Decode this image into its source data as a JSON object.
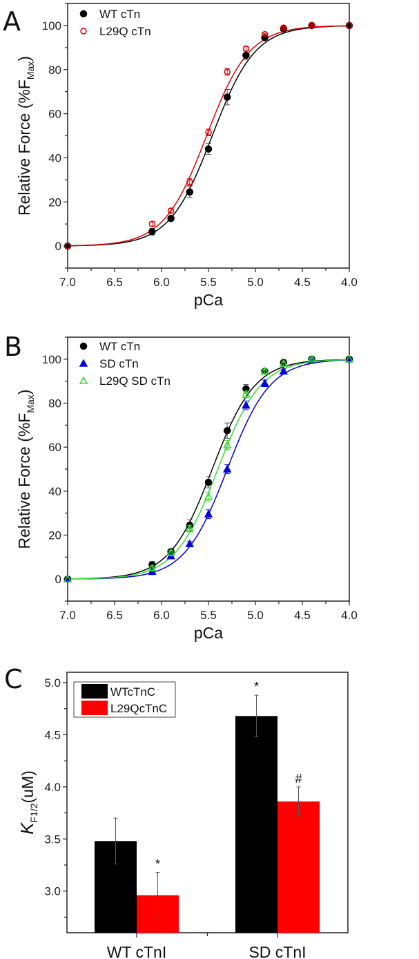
{
  "chart_data": [
    {
      "type": "scatter",
      "panel": "A",
      "xlabel": "pCa",
      "ylabel_main": "Relative Force (%F",
      "ylabel_sub": "Max",
      "ylabel_end": ")",
      "xlim": [
        7.0,
        4.0
      ],
      "ylim": [
        -10,
        110
      ],
      "xticks": [
        "7.0",
        "6.5",
        "6.0",
        "5.5",
        "5.0",
        "4.5",
        "4.0"
      ],
      "yticks": [
        "0",
        "20",
        "40",
        "60",
        "80",
        "100"
      ],
      "legend_position": "top-left",
      "series": [
        {
          "name": "WT cTn",
          "color": "#000000",
          "marker": "filled-circle",
          "x": [
            7.0,
            6.1,
            5.9,
            5.7,
            5.5,
            5.3,
            5.1,
            4.9,
            4.7,
            4.4,
            4.0
          ],
          "y": [
            0,
            6.5,
            12.5,
            24.5,
            44,
            67.5,
            86.5,
            94.5,
            98.5,
            100,
            100
          ],
          "err": [
            0,
            1.5,
            1,
            2.5,
            2.5,
            3.5,
            2,
            1,
            1,
            0.5,
            0
          ],
          "fit": {
            "model": "hill",
            "pCa50": 5.46,
            "n": 1.9
          }
        },
        {
          "name": "L29Q cTn",
          "color": "#e00000",
          "marker": "open-circle",
          "x": [
            7.0,
            6.1,
            5.9,
            5.7,
            5.5,
            5.3,
            5.1,
            4.9,
            4.7,
            4.4,
            4.0
          ],
          "y": [
            0,
            10,
            16,
            29,
            51.5,
            79,
            89.5,
            96,
            99,
            100,
            100
          ],
          "err": [
            0,
            1,
            1,
            1.5,
            1.5,
            1.5,
            1,
            0.5,
            0.5,
            0.5,
            0
          ],
          "fit": {
            "model": "hill",
            "pCa50": 5.52,
            "n": 1.9
          }
        }
      ]
    },
    {
      "type": "scatter",
      "panel": "B",
      "xlabel": "pCa",
      "ylabel_main": "Relative Force (%F",
      "ylabel_sub": "Max",
      "ylabel_end": ")",
      "xlim": [
        7.0,
        4.0
      ],
      "ylim": [
        -10,
        110
      ],
      "xticks": [
        "7.0",
        "6.5",
        "6.0",
        "5.5",
        "5.0",
        "4.5",
        "4.0"
      ],
      "yticks": [
        "0",
        "20",
        "40",
        "60",
        "80",
        "100"
      ],
      "legend_position": "top-left",
      "series": [
        {
          "name": "WT cTn",
          "color": "#000000",
          "marker": "filled-circle",
          "x": [
            7.0,
            6.1,
            5.9,
            5.7,
            5.5,
            5.3,
            5.1,
            4.9,
            4.7,
            4.4,
            4.0
          ],
          "y": [
            0,
            6.5,
            12.5,
            24.5,
            44,
            67.5,
            86.5,
            94.5,
            98.5,
            100,
            100
          ],
          "err": [
            0,
            1.5,
            1,
            2.5,
            2.5,
            3.5,
            2,
            1,
            1,
            0.5,
            0
          ],
          "fit": {
            "model": "hill",
            "pCa50": 5.46,
            "n": 1.9
          }
        },
        {
          "name": "SD cTn",
          "color": "#0000e0",
          "marker": "filled-triangle",
          "x": [
            7.0,
            6.1,
            5.9,
            5.7,
            5.5,
            5.3,
            5.1,
            4.9,
            4.7,
            4.4,
            4.0
          ],
          "y": [
            0,
            3.5,
            10.5,
            16,
            29.5,
            50,
            79,
            89,
            94.5,
            99.5,
            100
          ],
          "err": [
            0,
            1.5,
            1,
            1,
            2,
            2,
            2,
            1.5,
            1,
            0.5,
            0
          ],
          "fit": {
            "model": "hill",
            "pCa50": 5.3,
            "n": 1.9
          }
        },
        {
          "name": "L29Q SD cTn",
          "color": "#33dd33",
          "marker": "open-triangle",
          "x": [
            7.0,
            6.1,
            5.9,
            5.7,
            5.5,
            5.3,
            5.1,
            4.9,
            4.7,
            4.4,
            4.0
          ],
          "y": [
            0,
            5,
            12,
            23,
            37.5,
            61,
            84,
            94.5,
            98,
            100,
            100
          ],
          "err": [
            0,
            1,
            1,
            1.5,
            2,
            2,
            1.5,
            1,
            1,
            0.5,
            0
          ],
          "fit": {
            "model": "hill",
            "pCa50": 5.4,
            "n": 1.9
          }
        }
      ]
    },
    {
      "type": "bar",
      "panel": "C",
      "categories": [
        "WT cTnI",
        "SD cTnI"
      ],
      "ylabel_main": "K",
      "ylabel_sub": "F1/2",
      "ylabel_end": "(uM)",
      "ylim": [
        2.6,
        5.1
      ],
      "yticks": [
        "3.0",
        "3.5",
        "4.0",
        "4.5",
        "5.0"
      ],
      "legend_position": "top-left",
      "series": [
        {
          "name": "WTcTnC",
          "color": "#000000",
          "values": [
            3.48,
            4.68
          ],
          "err": [
            0.22,
            0.2
          ],
          "annotations": [
            "",
            "*"
          ]
        },
        {
          "name": "L29QcTnC",
          "color": "#ff0000",
          "values": [
            2.96,
            3.86
          ],
          "err": [
            0.22,
            0.14
          ],
          "annotations": [
            "*",
            "#"
          ]
        }
      ]
    }
  ]
}
